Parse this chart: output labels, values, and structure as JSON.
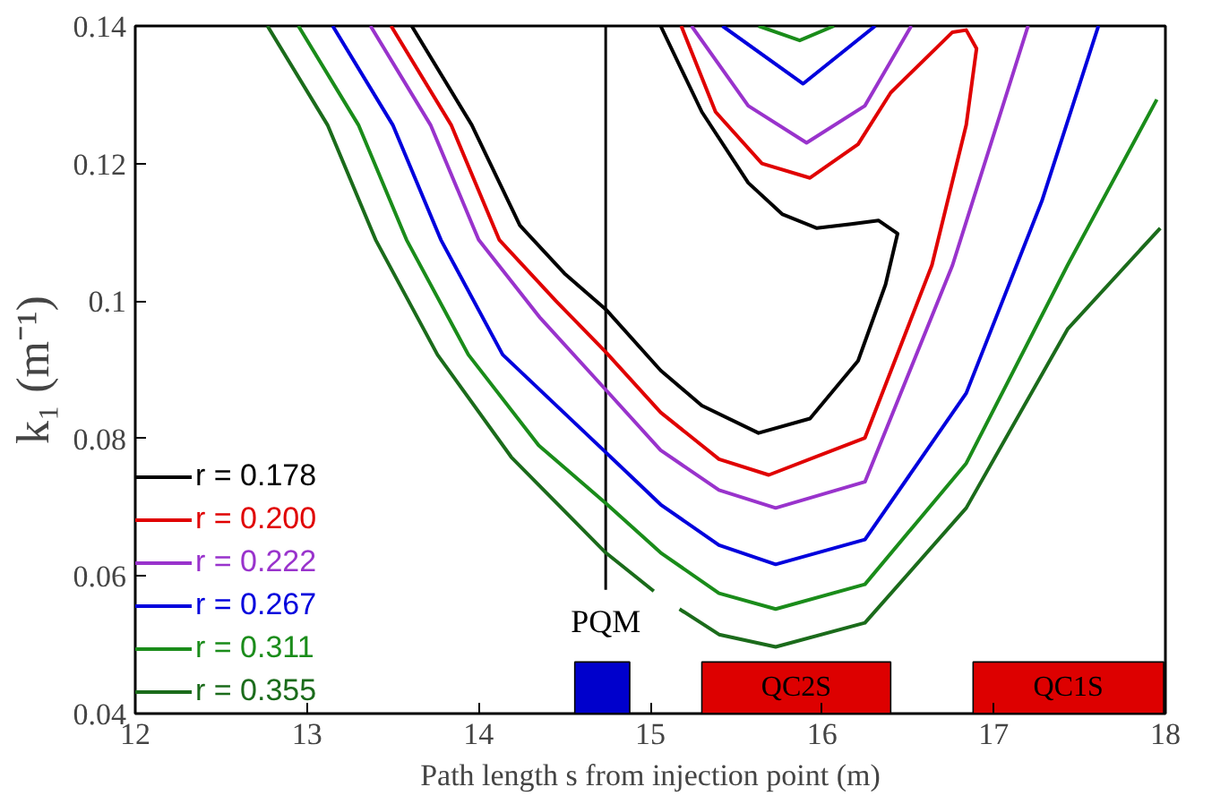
{
  "chart_data": {
    "type": "line",
    "xlabel": "Path length s from injection point (m)",
    "ylabel": "k₁ (m⁻¹)",
    "xlim": [
      12,
      18
    ],
    "ylim": [
      0.04,
      0.14
    ],
    "xticks": [
      12,
      13,
      14,
      15,
      16,
      17,
      18
    ],
    "yticks": [
      0.04,
      0.06,
      0.08,
      0.1,
      0.12,
      0.14
    ],
    "legend": "bottom left",
    "grid": false,
    "series": [
      {
        "name": "r = 0.178",
        "color": "#000000",
        "x": [
          13.61,
          13.96,
          14.24,
          14.5,
          14.74,
          15.06,
          15.3,
          15.63,
          15.93,
          16.21,
          16.37,
          16.44,
          16.33,
          16.17,
          15.97,
          15.77,
          15.57,
          15.3,
          15.06
        ],
        "values": [
          0.14,
          0.1256,
          0.111,
          0.104,
          0.0988,
          0.0899,
          0.0848,
          0.0808,
          0.0829,
          0.0913,
          0.1024,
          0.1098,
          0.1117,
          0.1112,
          0.1106,
          0.1126,
          0.1172,
          0.1275,
          0.14
        ]
      },
      {
        "name": "r = 0.200",
        "color": "#e00000",
        "x": [
          13.49,
          13.84,
          14.12,
          14.45,
          14.74,
          15.06,
          15.4,
          15.69,
          16.25,
          16.64,
          16.84,
          16.9,
          16.84,
          16.76,
          16.4,
          16.21,
          15.93,
          15.65,
          15.38,
          15.18
        ],
        "values": [
          0.14,
          0.1256,
          0.1089,
          0.1,
          0.0926,
          0.0838,
          0.077,
          0.0747,
          0.0801,
          0.1052,
          0.1256,
          0.1367,
          0.1394,
          0.1391,
          0.1303,
          0.1228,
          0.1179,
          0.12,
          0.1275,
          0.14
        ]
      },
      {
        "name": "r = 0.222",
        "color": "#9933cc",
        "x": [
          13.37,
          13.72,
          14.0,
          14.36,
          14.74,
          15.06,
          15.4,
          15.73,
          16.25,
          16.76,
          17.2,
          null,
          15.24,
          15.57,
          15.91,
          16.25,
          16.52
        ],
        "values": [
          0.14,
          0.1256,
          0.1089,
          0.0975,
          0.0871,
          0.0783,
          0.0725,
          0.0699,
          0.0737,
          0.1052,
          0.14,
          null,
          0.14,
          0.1284,
          0.123,
          0.1284,
          0.14
        ]
      },
      {
        "name": "r = 0.267",
        "color": "#0000dd",
        "x": [
          13.15,
          13.5,
          13.78,
          14.14,
          14.74,
          15.06,
          15.4,
          15.73,
          16.25,
          16.84,
          17.28,
          17.61,
          null,
          15.42,
          15.89,
          16.31
        ],
        "values": [
          0.14,
          0.1256,
          0.1089,
          0.0922,
          0.078,
          0.0704,
          0.0645,
          0.0617,
          0.0653,
          0.0866,
          0.1145,
          0.14,
          null,
          0.14,
          0.1316,
          0.14
        ]
      },
      {
        "name": "r = 0.311",
        "color": "#1a8c1a",
        "x": [
          12.95,
          13.3,
          13.58,
          13.94,
          14.35,
          14.74,
          15.06,
          15.4,
          15.73,
          16.25,
          16.84,
          17.43,
          17.95,
          null,
          15.63,
          15.87,
          16.07
        ],
        "values": [
          0.14,
          0.1256,
          0.1089,
          0.0922,
          0.079,
          0.0706,
          0.0634,
          0.0575,
          0.0552,
          0.0588,
          0.0764,
          0.1052,
          0.1293,
          null,
          0.14,
          0.1379,
          0.14
        ]
      },
      {
        "name": "r = 0.355",
        "color": "#1b6b1b",
        "x": [
          12.77,
          13.12,
          13.4,
          13.76,
          14.19,
          14.74,
          15.02,
          null,
          15.17,
          15.4,
          15.73,
          16.25,
          16.84,
          17.43,
          17.97
        ],
        "values": [
          0.14,
          0.1256,
          0.1089,
          0.0922,
          0.0773,
          0.0634,
          0.0578,
          null,
          0.0552,
          0.0515,
          0.0497,
          0.0532,
          0.0699,
          0.0959,
          0.1106
        ]
      }
    ],
    "ref_lines": [
      {
        "axis": "x",
        "value": 14.74,
        "label": "PQM",
        "color": "#000000"
      }
    ],
    "bands": [
      {
        "axis": "x",
        "from": 14.56,
        "to": 14.88,
        "label": null,
        "color": "#0000cc"
      },
      {
        "axis": "x",
        "from": 15.3,
        "to": 16.4,
        "label": "QC2S",
        "color": "#dd0000"
      },
      {
        "axis": "x",
        "from": 16.88,
        "to": 17.99,
        "label": "QC1S",
        "color": "#dd0000"
      }
    ]
  }
}
